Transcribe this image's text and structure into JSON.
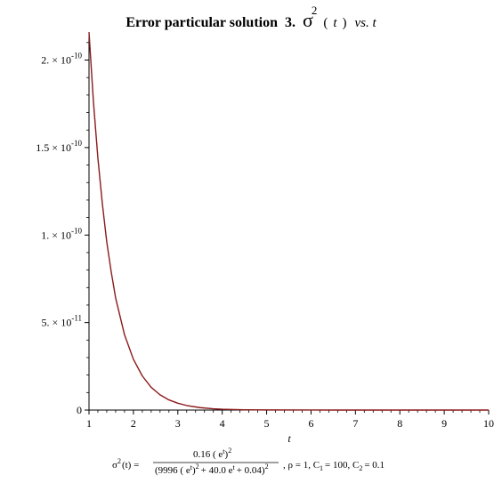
{
  "chart_data": {
    "type": "line",
    "title": {
      "bold_text": "Error particular solution",
      "number": "3.",
      "symbol": "σ",
      "superscript": "2",
      "paren_open": "(",
      "var": "t",
      "paren_close": ")",
      "suffix": "vs. t"
    },
    "xlabel": "t",
    "ylabel": "",
    "xlim": [
      1,
      10
    ],
    "ylim": [
      0,
      2.15e-10
    ],
    "x_ticks": [
      1,
      2,
      3,
      4,
      5,
      6,
      7,
      8,
      9,
      10
    ],
    "y_ticks": [
      {
        "value": 0,
        "mantissa": "0",
        "exponent": ""
      },
      {
        "value": 5e-11,
        "mantissa": "5. × 10",
        "exponent": "-11"
      },
      {
        "value": 1e-10,
        "mantissa": "1. × 10",
        "exponent": "-10"
      },
      {
        "value": 1.5e-10,
        "mantissa": "1.5 × 10",
        "exponent": "-10"
      },
      {
        "value": 2e-10,
        "mantissa": "2. × 10",
        "exponent": "-10"
      }
    ],
    "grid": false,
    "series": [
      {
        "color": "#8b1a1a",
        "x": [
          1.0,
          1.1,
          1.2,
          1.3,
          1.4,
          1.5,
          1.6,
          1.8,
          2.0,
          2.2,
          2.4,
          2.6,
          2.8,
          3.0,
          3.2,
          3.5,
          3.8,
          4.0,
          4.5,
          5.0,
          6.0,
          7.0,
          8.0,
          9.0,
          10.0
        ],
        "y": [
          2.16e-10,
          1.76e-10,
          1.44e-10,
          1.18e-10,
          9.6e-11,
          7.9e-11,
          6.4e-11,
          4.3e-11,
          2.9e-11,
          1.95e-11,
          1.3e-11,
          8.7e-12,
          5.8e-12,
          3.9e-12,
          2.6e-12,
          1.4e-12,
          7.5e-13,
          4.9e-13,
          1.8e-13,
          6.5e-14,
          9e-15,
          1.2e-15,
          1.6e-16,
          2e-17,
          3e-18
        ]
      }
    ],
    "caption": {
      "lhs": "σ",
      "lhs_sup": "2",
      "lhs_arg": "(t) =",
      "numerator": "0.16 ( e",
      "numerator_sup": "t",
      "numerator_end": ")",
      "numerator_pow": "2",
      "denominator": "(9996 ( e",
      "denominator_sup": "t",
      "denominator_mid": ")",
      "denominator_pow": "2",
      "denominator_rest": "+ 40.0 e",
      "denominator_rest_sup": "t",
      "denominator_end": "+ 0.04)",
      "denominator_outer_pow": "2",
      "params": ", ρ = 1, C",
      "c1_sub": "1",
      "c1_val": "= 100, C",
      "c2_sub": "2",
      "c2_val": "= 0.1"
    }
  }
}
